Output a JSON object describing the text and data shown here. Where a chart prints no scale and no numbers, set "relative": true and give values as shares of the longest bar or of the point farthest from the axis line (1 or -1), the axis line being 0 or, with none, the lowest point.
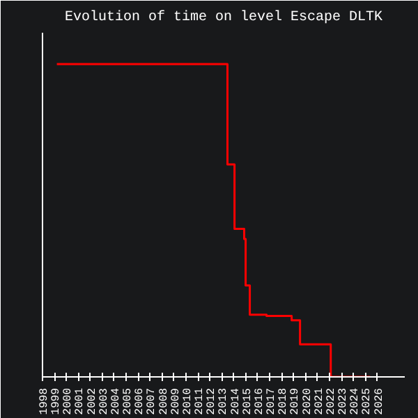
{
  "chart_data": {
    "type": "step",
    "title": "Evolution of time on level Escape DLTK",
    "relative": true,
    "x": [
      1999.2,
      2013.47,
      2014.06,
      2014.87,
      2014.99,
      2015.34,
      2016.74,
      2018.84,
      2019.54,
      2022.11,
      2025.4
    ],
    "series": [
      {
        "color": "#ff0000",
        "values": [
          1,
          0.679,
          0.473,
          0.441,
          0.292,
          0.199,
          0.195,
          0.181,
          0.104,
          0,
          0
        ]
      }
    ],
    "xlim": [
      1998,
      2028.3
    ],
    "xticks": [
      1998,
      1999,
      2000,
      2001,
      2002,
      2003,
      2004,
      2005,
      2006,
      2007,
      2008,
      2009,
      2010,
      2011,
      2012,
      2013,
      2014,
      2015,
      2016,
      2017,
      2018,
      2019,
      2020,
      2021,
      2022,
      2023,
      2024,
      2025,
      2026
    ]
  }
}
